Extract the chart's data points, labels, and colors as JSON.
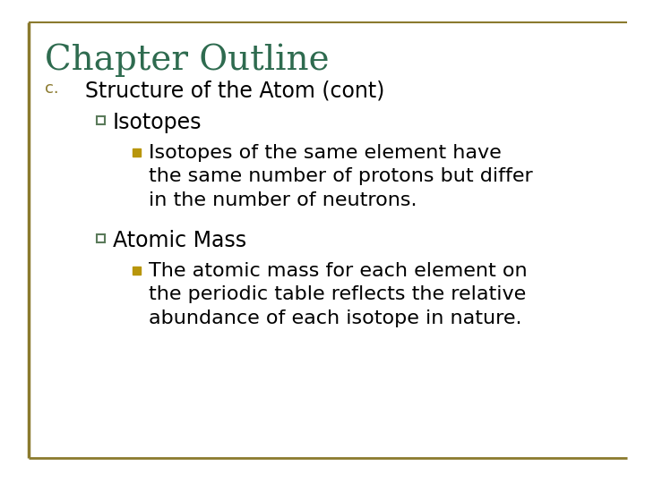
{
  "title": "Chapter Outline",
  "title_color": "#2E6B4F",
  "title_fontsize": 28,
  "background_color": "#FFFFFF",
  "border_color": "#8B7A2E",
  "level1_label": "c.",
  "level1_label_color": "#8B7A2E",
  "level1_label_fontsize": 13,
  "level1_text": "Structure of the Atom (cont)",
  "level1_fontsize": 17,
  "level1_color": "#000000",
  "level2_bullet_edge": "#5A7A5A",
  "level2_bullet_face": "#FFFFFF",
  "level3_bullet_color": "#B8960C",
  "level2_items": [
    {
      "text": "Isotopes",
      "fontsize": 17,
      "color": "#000000",
      "sub_items": [
        {
          "text": "Isotopes of the same element have\nthe same number of protons but differ\nin the number of neutrons.",
          "fontsize": 16,
          "color": "#000000"
        }
      ]
    },
    {
      "text": "Atomic Mass",
      "fontsize": 17,
      "color": "#000000",
      "sub_items": [
        {
          "text": "The atomic mass for each element on\nthe periodic table reflects the relative\nabundance of each isotope in nature.",
          "fontsize": 16,
          "color": "#000000"
        }
      ]
    }
  ]
}
